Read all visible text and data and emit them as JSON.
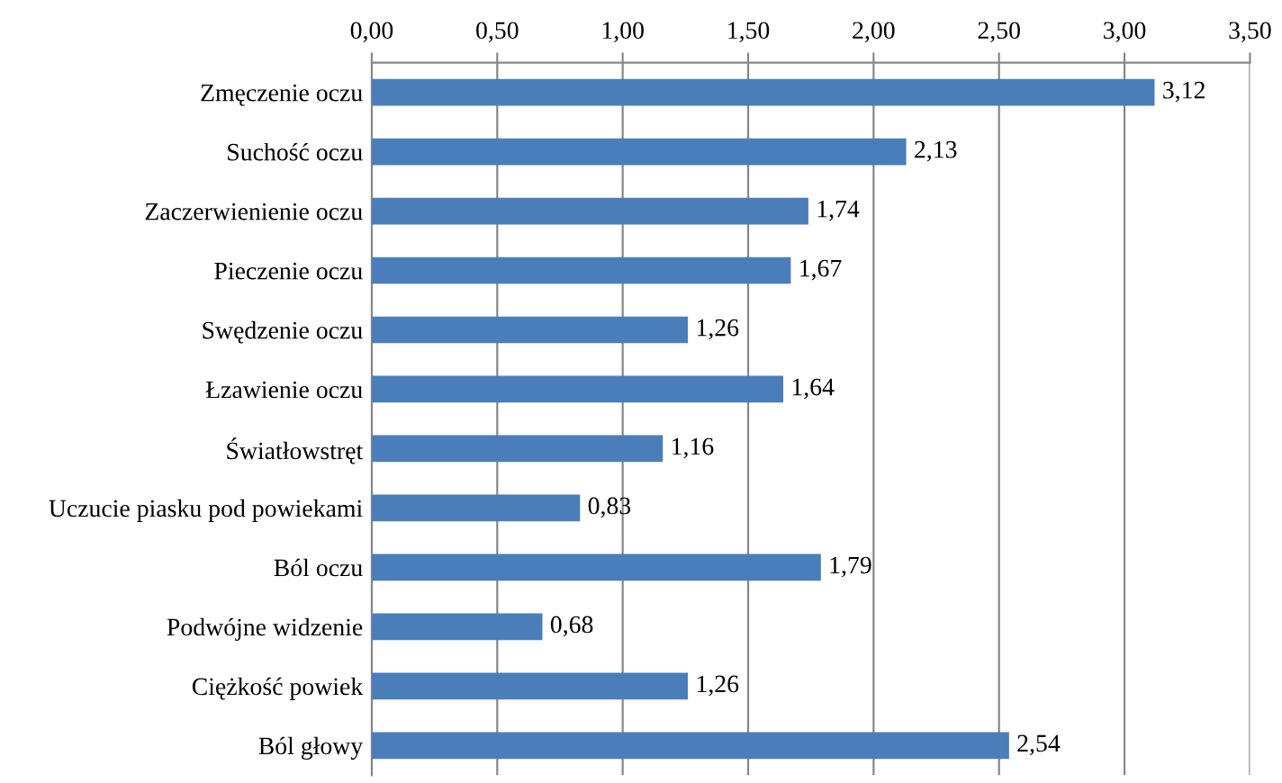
{
  "chart_data": {
    "type": "bar",
    "orientation": "horizontal",
    "categories": [
      "Zmęczenie oczu",
      "Suchość oczu",
      "Zaczerwienienie oczu",
      "Pieczenie oczu",
      "Swędzenie oczu",
      "Łzawienie oczu",
      "Światłowstręt",
      "Uczucie piasku pod powiekami",
      "Ból oczu",
      "Podwójne widzenie",
      "Ciężkość powiek",
      "Ból głowy"
    ],
    "values": [
      3.12,
      2.13,
      1.74,
      1.67,
      1.26,
      1.64,
      1.16,
      0.83,
      1.79,
      0.68,
      1.26,
      2.54
    ],
    "value_labels": [
      "3,12",
      "2,13",
      "1,74",
      "1,67",
      "1,26",
      "1,64",
      "1,16",
      "0,83",
      "1,79",
      "0,68",
      "1,26",
      "2,54"
    ],
    "color": "#4a7ebb",
    "xlim": [
      0,
      3.5
    ],
    "xticks": [
      {
        "value": 0,
        "label": "0,00"
      },
      {
        "value": 0.5,
        "label": "0,50"
      },
      {
        "value": 1,
        "label": "1,00"
      },
      {
        "value": 1.5,
        "label": "1,50"
      },
      {
        "value": 2,
        "label": "2,00"
      },
      {
        "value": 2.5,
        "label": "2,50"
      },
      {
        "value": 3,
        "label": "3,00"
      },
      {
        "value": 3.5,
        "label": "3,50"
      }
    ],
    "grid": "x",
    "legend": false
  }
}
